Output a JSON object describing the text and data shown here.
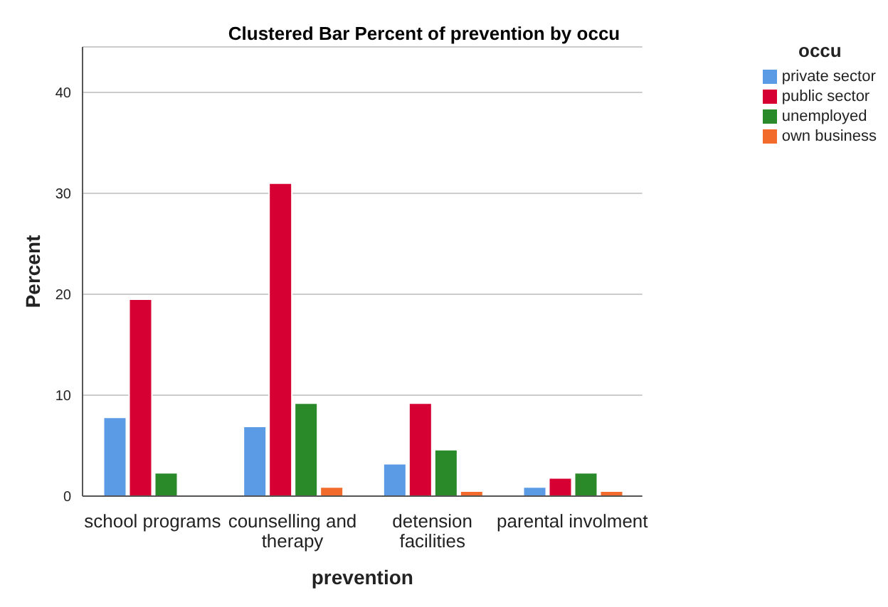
{
  "chart_data": {
    "type": "bar",
    "title": "Clustered Bar Percent of prevention by occu",
    "xlabel": "prevention",
    "ylabel": "Percent",
    "legend_title": "occu",
    "categories": [
      "school programs",
      "counselling and therapy",
      "detension facilities",
      "parental involment"
    ],
    "series": [
      {
        "name": "private sector",
        "color": "#5b9be6",
        "values": [
          7.8,
          6.9,
          3.2,
          0.9
        ]
      },
      {
        "name": "public sector",
        "color": "#d60032",
        "values": [
          19.5,
          31.0,
          9.2,
          1.8
        ]
      },
      {
        "name": "unemployed",
        "color": "#2a8a2a",
        "values": [
          2.3,
          9.2,
          4.6,
          2.3
        ]
      },
      {
        "name": "own business",
        "color": "#f26b2a",
        "values": [
          null,
          0.9,
          0.5,
          0.5
        ]
      }
    ],
    "ylim": [
      0,
      44.5
    ],
    "yticks": [
      0,
      10,
      20,
      30,
      40
    ],
    "grid": "y",
    "legend": "top right"
  }
}
